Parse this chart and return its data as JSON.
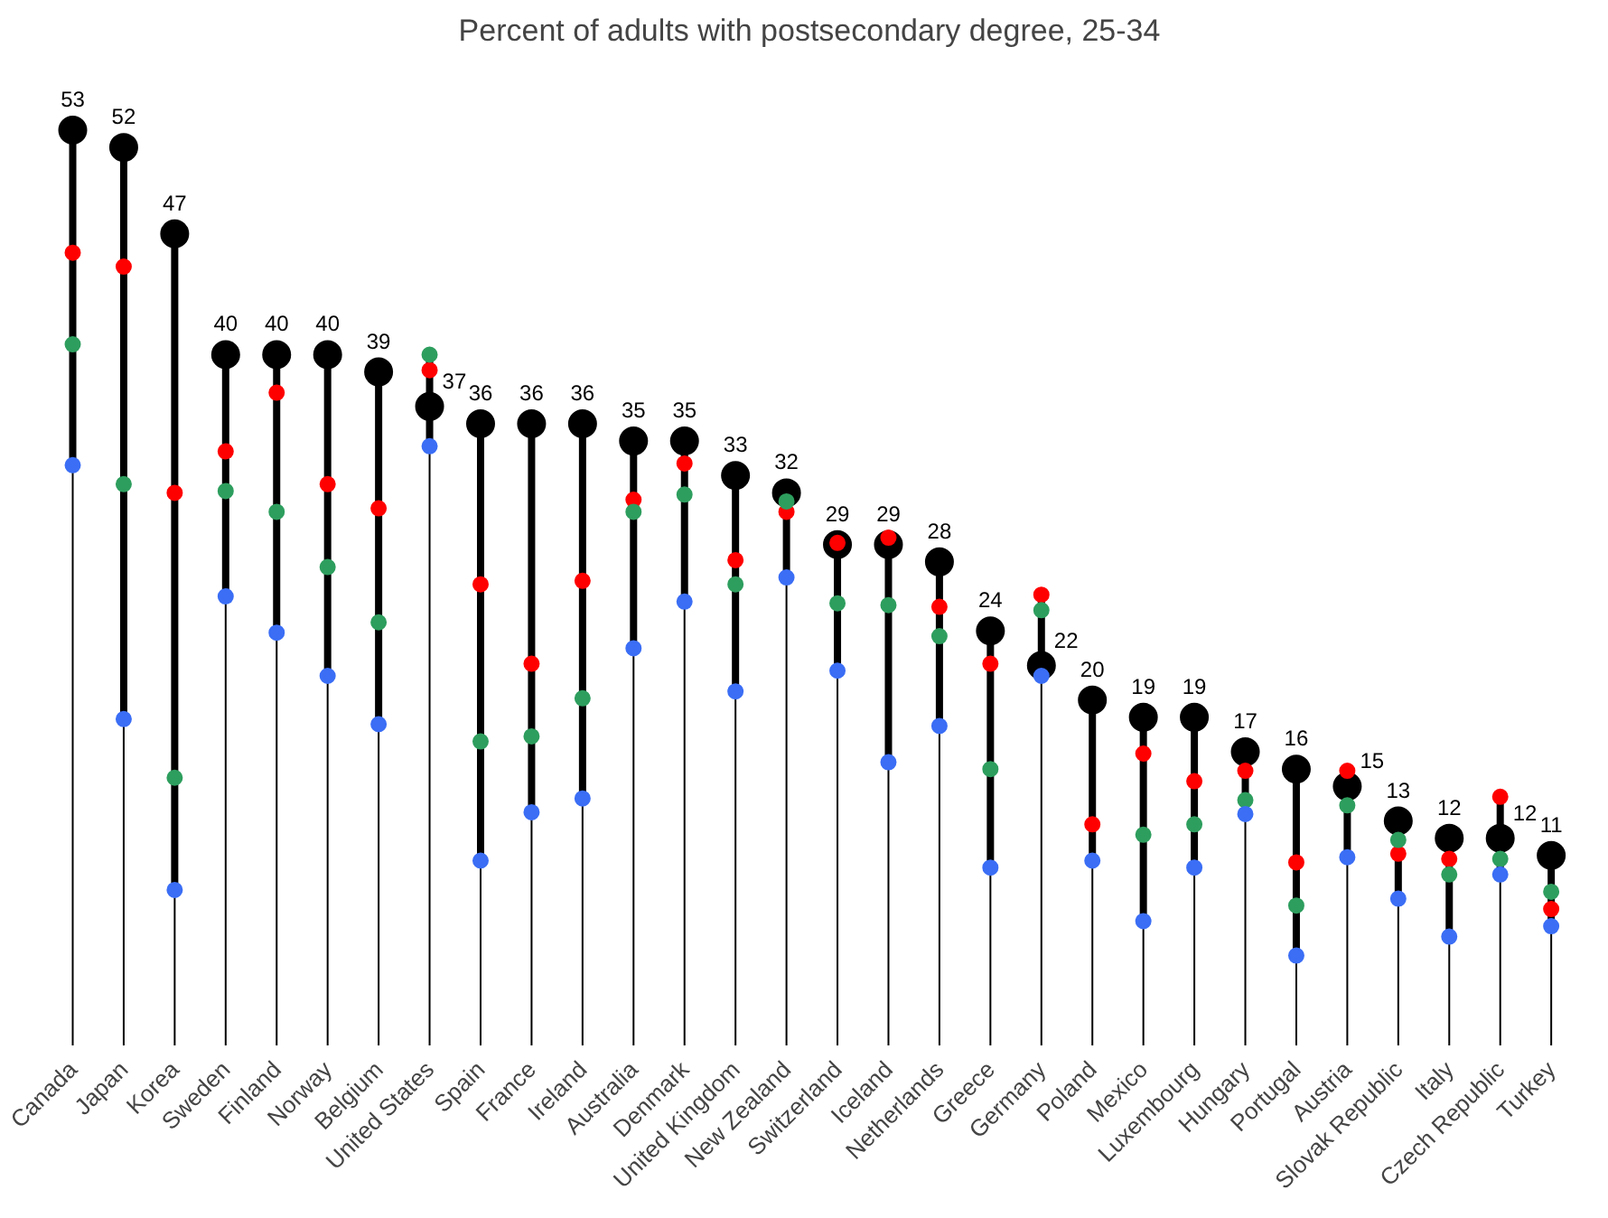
{
  "chart_data": {
    "type": "scatter",
    "title": "Percent of adults with postsecondary degree, 25-34",
    "categories": [
      "Canada",
      "Japan",
      "Korea",
      "Sweden",
      "Finland",
      "Norway",
      "Belgium",
      "United States",
      "Spain",
      "France",
      "Ireland",
      "Australia",
      "Denmark",
      "United Kingdom",
      "New Zealand",
      "Switzerland",
      "Iceland",
      "Netherlands",
      "Greece",
      "Germany",
      "Poland",
      "Mexico",
      "Luxembourg",
      "Hungary",
      "Portugal",
      "Austria",
      "Slovak Republic",
      "Italy",
      "Czech Republic",
      "Turkey"
    ],
    "marker": "circle",
    "tick_labels": "x",
    "series": [
      {
        "color": "#000000",
        "values": [
          53,
          52,
          47,
          40,
          40,
          40,
          39,
          37,
          36,
          36,
          36,
          35,
          35,
          33,
          32,
          29,
          29,
          28,
          24,
          22,
          20,
          19,
          19,
          17,
          16,
          15,
          13,
          12,
          12,
          11
        ],
        "value_labels": [
          "53",
          "52",
          "47",
          "40",
          "40",
          "40",
          "39",
          "37",
          "36",
          "36",
          "36",
          "35",
          "35",
          "33",
          "32",
          "29",
          "29",
          "28",
          "24",
          "22",
          "20",
          "19",
          "19",
          "17",
          "16",
          "15",
          "13",
          "12",
          "12",
          "11"
        ]
      },
      {
        "color": "#ff0000",
        "values": [
          45.9,
          45.1,
          32.0,
          34.4,
          37.8,
          32.5,
          31.1,
          39.1,
          26.7,
          22.1,
          26.9,
          31.6,
          33.7,
          28.1,
          30.9,
          29.1,
          29.4,
          25.4,
          22.1,
          26.1,
          12.8,
          16.9,
          15.3,
          15.9,
          10.6,
          15.9,
          11.1,
          10.8,
          14.4,
          7.9
        ]
      },
      {
        "color": "#2e9e5e",
        "values": [
          40.6,
          32.5,
          15.5,
          32.1,
          30.9,
          27.7,
          24.5,
          40.0,
          17.6,
          17.9,
          20.1,
          30.9,
          31.9,
          26.7,
          31.5,
          25.6,
          25.5,
          23.7,
          16.0,
          25.2,
          null,
          12.2,
          12.8,
          14.2,
          8.1,
          13.9,
          11.9,
          9.9,
          10.8,
          8.9
        ]
      },
      {
        "color": "#3b6ef5",
        "values": [
          33.6,
          18.9,
          9.0,
          26.0,
          23.9,
          21.4,
          18.6,
          34.7,
          10.7,
          13.5,
          14.3,
          23.0,
          25.7,
          20.5,
          27.1,
          21.7,
          16.4,
          18.5,
          10.3,
          21.4,
          10.7,
          7.2,
          10.3,
          13.4,
          5.2,
          10.9,
          8.5,
          6.3,
          9.9,
          6.9
        ]
      }
    ]
  }
}
